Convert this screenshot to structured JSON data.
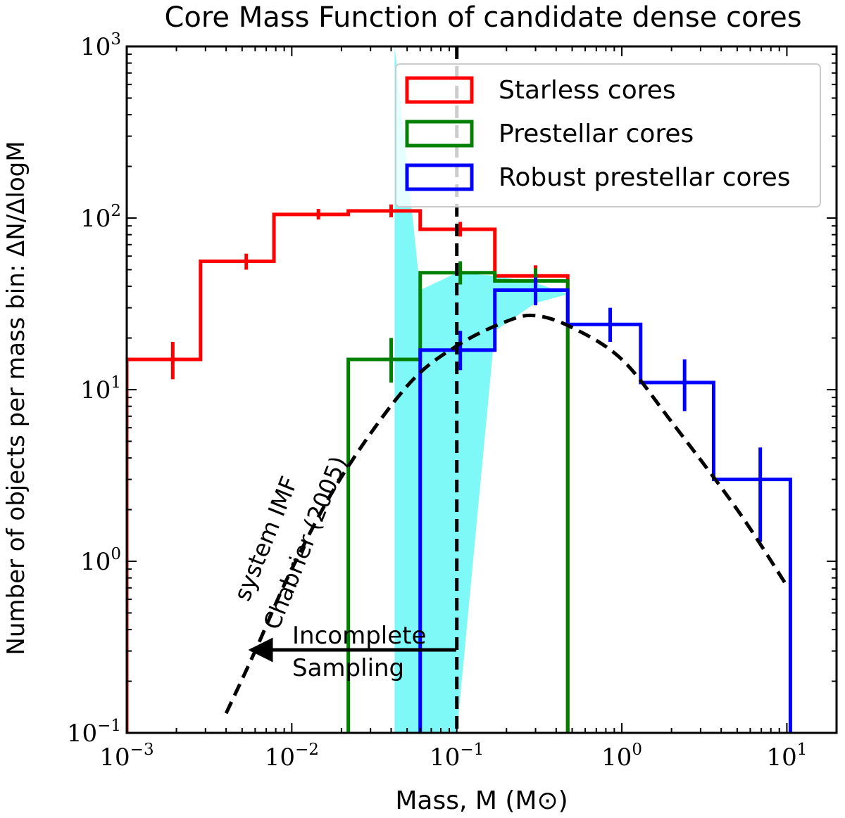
{
  "chart_data": {
    "type": "step-histogram",
    "title": "Core Mass Function of candidate dense cores",
    "xlabel": "Mass, M (M⊙)",
    "ylabel": "Number of objects per mass bin: ΔN/ΔlogM",
    "xscale": "log",
    "yscale": "log",
    "xlim": [
      0.001,
      20
    ],
    "ylim": [
      0.1,
      1000
    ],
    "x_ticks": [
      {
        "value": 0.001,
        "base": "10",
        "exp": "−3"
      },
      {
        "value": 0.01,
        "base": "10",
        "exp": "−2"
      },
      {
        "value": 0.1,
        "base": "10",
        "exp": "−1"
      },
      {
        "value": 1,
        "base": "10",
        "exp": "0"
      },
      {
        "value": 10,
        "base": "10",
        "exp": "1"
      }
    ],
    "y_ticks": [
      {
        "value": 0.1,
        "base": "10",
        "exp": "−1"
      },
      {
        "value": 1,
        "base": "10",
        "exp": "0"
      },
      {
        "value": 10,
        "base": "10",
        "exp": "1"
      },
      {
        "value": 100,
        "base": "10",
        "exp": "2"
      },
      {
        "value": 1000,
        "base": "10",
        "exp": "3"
      }
    ],
    "legend": {
      "position": "top-right",
      "entries": [
        {
          "label": "Starless cores",
          "color": "#ff0000"
        },
        {
          "label": "Prestellar cores",
          "color": "#008000"
        },
        {
          "label": "Robust prestellar cores",
          "color": "#0000ff"
        }
      ]
    },
    "series": [
      {
        "name": "Starless cores",
        "color": "#ff0000",
        "edges": [
          0.001,
          0.0028,
          0.0078,
          0.022,
          0.06,
          0.17,
          0.47
        ],
        "values": [
          15,
          56,
          105,
          110,
          86,
          46
        ],
        "errors": [
          {
            "x": 0.0019,
            "lo": 11.5,
            "hi": 19
          },
          {
            "x": 0.0053,
            "lo": 50,
            "hi": 62
          },
          {
            "x": 0.0145,
            "lo": 98,
            "hi": 113
          },
          {
            "x": 0.04,
            "lo": 101,
            "hi": 120
          },
          {
            "x": 0.105,
            "lo": 78,
            "hi": 95
          },
          {
            "x": 0.3,
            "lo": 40,
            "hi": 53
          }
        ]
      },
      {
        "name": "Prestellar cores",
        "color": "#008000",
        "edges": [
          0.022,
          0.06,
          0.17,
          0.47
        ],
        "values": [
          15,
          48,
          43
        ],
        "errors": [
          {
            "x": 0.04,
            "lo": 11,
            "hi": 20
          },
          {
            "x": 0.105,
            "lo": 41,
            "hi": 56
          },
          {
            "x": 0.3,
            "lo": 36,
            "hi": 51
          }
        ]
      },
      {
        "name": "Robust prestellar cores",
        "color": "#0000ff",
        "edges": [
          0.06,
          0.17,
          0.47,
          1.3,
          3.6,
          10.5
        ],
        "values": [
          17,
          38,
          24,
          11,
          3
        ],
        "errors": [
          {
            "x": 0.105,
            "lo": 13,
            "hi": 22
          },
          {
            "x": 0.3,
            "lo": 31,
            "hi": 45
          },
          {
            "x": 0.85,
            "lo": 19,
            "hi": 30
          },
          {
            "x": 2.4,
            "lo": 7.5,
            "hi": 15
          },
          {
            "x": 6.9,
            "lo": 1.3,
            "hi": 4.6
          }
        ]
      }
    ],
    "imf_curve": {
      "style": "dashed",
      "color": "#000000",
      "x": [
        0.004,
        0.006,
        0.01,
        0.02,
        0.05,
        0.1,
        0.2,
        0.3,
        0.5,
        1.0,
        2.0,
        5.0,
        10.0
      ],
      "y": [
        0.13,
        0.3,
        0.9,
        3.1,
        10.5,
        18,
        25,
        27,
        23,
        15,
        6.5,
        2.0,
        0.72
      ]
    },
    "completeness_line": {
      "x": 0.1,
      "style": "dashed"
    },
    "shaded_band": {
      "color": "#7ff8f8",
      "x": [
        0.042,
        0.06,
        0.1,
        0.17,
        0.3,
        0.47
      ],
      "upper": [
        1000,
        38,
        48,
        46,
        42,
        36
      ],
      "lower": [
        0.1,
        0.1,
        0.1,
        22,
        32,
        36
      ]
    },
    "annotations": {
      "imf_label_line1": "system IMF",
      "imf_label_line2": "Chabrier (2005)",
      "incomplete_line1": "Incomplete",
      "incomplete_line2": "Sampling"
    }
  }
}
